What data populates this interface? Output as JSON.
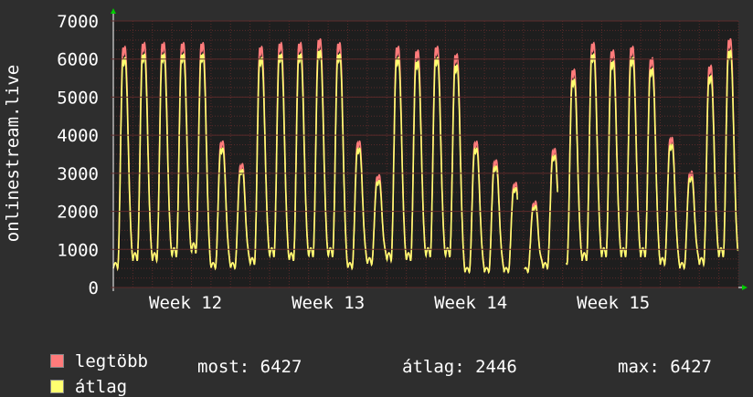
{
  "colors": {
    "background": "#2e2e2e",
    "plot_background": "#1e1e1e",
    "grid": "#5a2a2a",
    "axis": "#ffffff",
    "arrow": "#00cc00",
    "series_max": "#ff7b7b",
    "series_avg": "#ffff70"
  },
  "chart_data": {
    "type": "line",
    "ylabel": "onlinestream.live",
    "ylim": [
      0,
      7000
    ],
    "yticks": [
      0,
      1000,
      2000,
      3000,
      4000,
      5000,
      6000,
      7000
    ],
    "xlim_days": [
      0,
      32
    ],
    "week_labels": [
      {
        "day": 3.7,
        "label": "Week 12"
      },
      {
        "day": 11,
        "label": "Week 13"
      },
      {
        "day": 18.3,
        "label": "Week 14"
      },
      {
        "day": 25.6,
        "label": "Week 15"
      }
    ],
    "grid": true,
    "daily_peaks": [
      6300,
      6400,
      6400,
      6400,
      6400,
      3800,
      3200,
      6300,
      6400,
      6400,
      6500,
      6400,
      3800,
      2900,
      6300,
      6200,
      6300,
      6100,
      3800,
      3300,
      2700,
      2200,
      3600,
      5700,
      6400,
      6200,
      6300,
      6000,
      3900,
      3000,
      5800,
      6500
    ],
    "daily_lows": [
      500,
      700,
      700,
      800,
      900,
      500,
      500,
      600,
      800,
      700,
      800,
      800,
      500,
      600,
      700,
      700,
      800,
      800,
      400,
      400,
      400,
      400,
      500,
      600,
      700,
      800,
      800,
      800,
      600,
      500,
      600,
      800
    ],
    "gaps_days": [
      [
        20.7,
        21.05
      ],
      [
        22.75,
        23.2
      ]
    ],
    "series": [
      {
        "name": "legtöbb",
        "color": "#ff7b7b"
      },
      {
        "name": "átlag",
        "color": "#ffff70"
      }
    ]
  },
  "legend": {
    "items": [
      {
        "label": "legtöbb"
      },
      {
        "label": "átlag"
      }
    ],
    "stats": {
      "most": "most: 6427",
      "atlag": "átlag: 2446",
      "max": "max: 6427"
    }
  }
}
